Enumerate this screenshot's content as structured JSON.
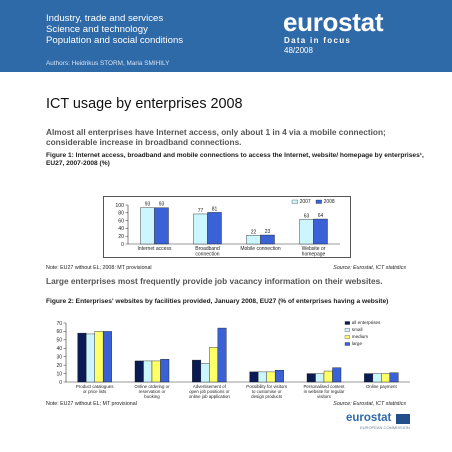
{
  "header": {
    "topics": [
      "Industry, trade and services",
      "Science and technology",
      "Population and social conditions"
    ],
    "authors": "Authors: Heidrikus STORM, Maria SMIHILY",
    "brand": "eurostat",
    "series": "Data in focus",
    "issue": "48/2008",
    "bg_color": "#2f6aa8"
  },
  "title": "ICT usage by enterprises 2008",
  "lead1": "Almost all enterprises have Internet access, only about 1 in 4 via a mobile connection; considerable increase in broadband connections.",
  "figure1": {
    "caption": "Figure 1: Internet access, broadband and mobile connections to access the Internet, website/ homepage by enterprises¹, EU27, 2007-2008 (%)",
    "note": "Note: EU27 without EL; 2008: MT provisional",
    "source": "Source: Eurostat, ICT statistics"
  },
  "lead2": "Large enterprises most frequently provide job vacancy information on their websites.",
  "figure2": {
    "caption": "Figure 2: Enterprises' websites by facilities provided, January 2008, EU27 (% of enterprises having a website)",
    "note": "Note: EU27 without EL; MT provisional",
    "source": "Source: Eurostat, ICT statistics"
  },
  "footer": {
    "brand": "eurostat",
    "commission": "EUROPEAN COMMISSION"
  },
  "chart_data": [
    {
      "type": "bar",
      "categories": [
        [
          "Internet access"
        ],
        [
          "Broadband",
          "connection"
        ],
        [
          "Mobile connection"
        ],
        [
          "Website or",
          "homepage"
        ]
      ],
      "series": [
        {
          "name": "2007",
          "color": "#ccf6ff",
          "values": [
            93,
            77,
            22,
            63
          ]
        },
        {
          "name": "2008",
          "color": "#3a62d6",
          "values": [
            93,
            81,
            23,
            64
          ]
        }
      ],
      "ylim": [
        0,
        100
      ],
      "yticks": [
        0,
        20,
        40,
        60,
        80,
        100
      ],
      "data_labels": true,
      "legend": "top-right",
      "grid": false
    },
    {
      "type": "bar",
      "categories": [
        [
          "Product catalogues",
          "or price lists"
        ],
        [
          "Online ordering or",
          "reservation or",
          "booking"
        ],
        [
          "Advertisement of",
          "open job positions or",
          "online job application"
        ],
        [
          "Possibility for visitors",
          "to customise or",
          "design products"
        ],
        [
          "Personalised content",
          "in website for regular",
          "visitors"
        ],
        [
          "Online payment"
        ]
      ],
      "series": [
        {
          "name": "all enterprises",
          "color": "#0b1b54",
          "values": [
            58,
            25,
            26,
            12,
            10,
            10
          ]
        },
        {
          "name": "small",
          "color": "#ccf6ff",
          "values": [
            57,
            25,
            22,
            12,
            10,
            10
          ]
        },
        {
          "name": "medium",
          "color": "#ffff66",
          "values": [
            60,
            25,
            41,
            12,
            13,
            10
          ]
        },
        {
          "name": "large",
          "color": "#3a62d6",
          "values": [
            60,
            27,
            64,
            14,
            17,
            11
          ]
        }
      ],
      "ylim": [
        0,
        70
      ],
      "yticks": [
        0,
        10,
        20,
        30,
        40,
        50,
        60,
        70
      ],
      "data_labels": false,
      "legend": "top-right",
      "grid": false
    }
  ]
}
